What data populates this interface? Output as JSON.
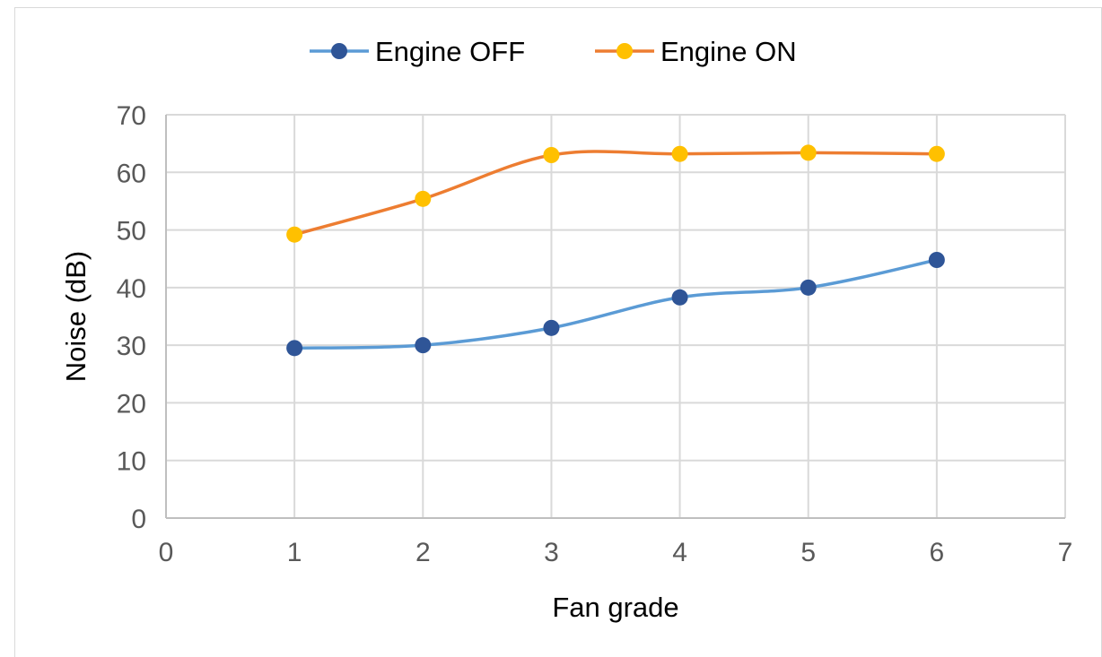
{
  "chart_data": {
    "type": "scatter",
    "title": "",
    "xlabel": "Fan grade",
    "ylabel": "Noise (dB)",
    "xlim": [
      0,
      7
    ],
    "ylim": [
      0,
      70
    ],
    "x_ticks": [
      "0",
      "1",
      "2",
      "3",
      "4",
      "5",
      "6",
      "7"
    ],
    "y_ticks": [
      "0",
      "10",
      "20",
      "30",
      "40",
      "50",
      "60",
      "70"
    ],
    "grid": true,
    "smooth_lines": true,
    "legend_position": "top",
    "series": [
      {
        "name": "Engine OFF",
        "line_color": "#5b9bd5",
        "marker_color": "#2f5597",
        "x": [
          1,
          2,
          3,
          4,
          5,
          6
        ],
        "y": [
          29.5,
          30,
          33,
          38.3,
          40,
          44.8
        ]
      },
      {
        "name": "Engine ON",
        "line_color": "#ed7d31",
        "marker_color": "#ffc000",
        "x": [
          1,
          2,
          3,
          4,
          5,
          6
        ],
        "y": [
          49.2,
          55.4,
          63,
          63.2,
          63.4,
          63.2
        ]
      }
    ]
  }
}
